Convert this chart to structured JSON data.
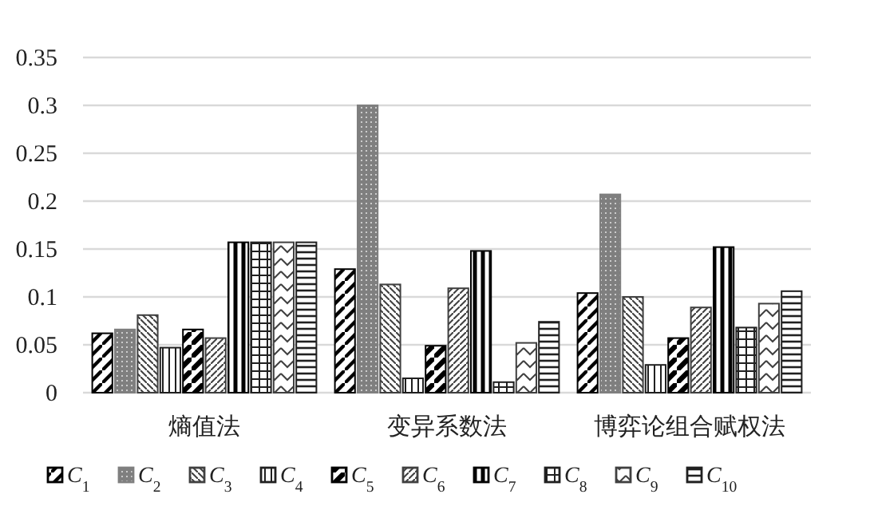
{
  "chart_data": {
    "type": "bar",
    "categories": [
      "熵值法",
      "变异系数法",
      "博弈论组合赋权法"
    ],
    "ylim": [
      0,
      0.35
    ],
    "yticks": [
      0,
      0.05,
      0.1,
      0.15,
      0.2,
      0.25,
      0.3,
      0.35
    ],
    "grid": "y",
    "legend": "bottom",
    "series": [
      {
        "name": "*C*$_{1}$",
        "color": "#000000",
        "values": [
          0.062,
          0.129,
          0.104
        ]
      },
      {
        "name": "*C*$_{2}$",
        "color": "#7f7f7f",
        "values": [
          0.066,
          0.3,
          0.207
        ]
      },
      {
        "name": "*C*$_{3}$",
        "color": "#404040",
        "values": [
          0.081,
          0.113,
          0.1
        ]
      },
      {
        "name": "*C*$_{4}$",
        "color": "#202020",
        "values": [
          0.047,
          0.015,
          0.029
        ]
      },
      {
        "name": "*C*$_{5}$",
        "color": "#000000",
        "values": [
          0.066,
          0.049,
          0.057
        ]
      },
      {
        "name": "*C*$_{6}$",
        "color": "#404040",
        "values": [
          0.057,
          0.109,
          0.089
        ]
      },
      {
        "name": "*C*$_{7}$",
        "color": "#000000",
        "values": [
          0.157,
          0.148,
          0.152
        ]
      },
      {
        "name": "*C*$_{8}$",
        "color": "#202020",
        "values": [
          0.157,
          0.011,
          0.068
        ]
      },
      {
        "name": "*C*$_{9}$",
        "color": "#404040",
        "values": [
          0.157,
          0.052,
          0.093
        ]
      },
      {
        "name": "*C*$_{10}$",
        "color": "#202020",
        "values": [
          0.157,
          0.074,
          0.106
        ]
      }
    ]
  }
}
